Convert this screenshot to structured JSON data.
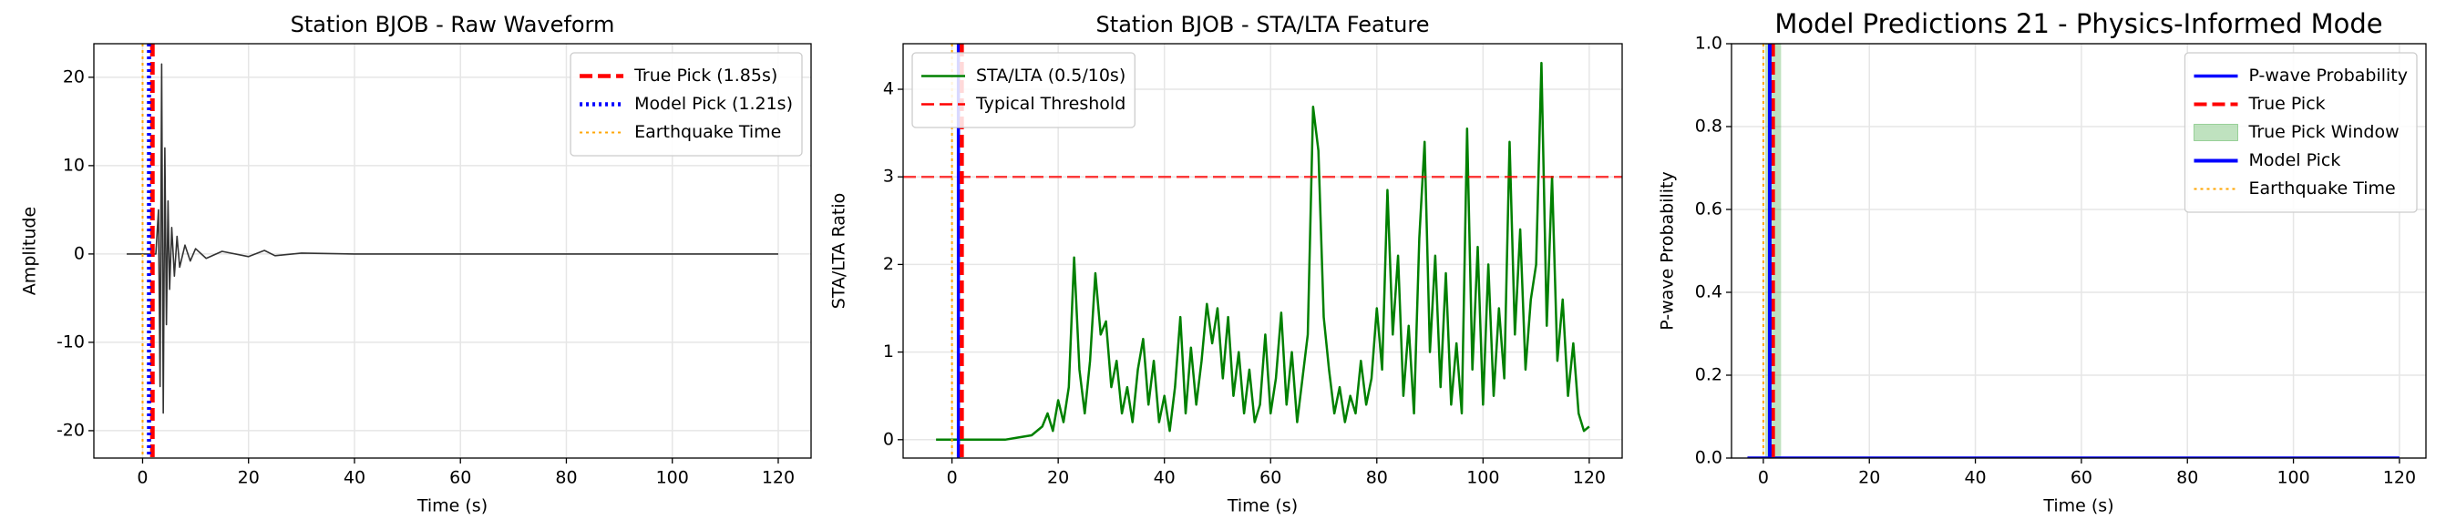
{
  "chart_data": [
    {
      "type": "line",
      "title": "Station BJOB - Raw Waveform",
      "xlabel": "Time (s)",
      "ylabel": "Amplitude",
      "xlim": [
        -9.2,
        126.2
      ],
      "ylim": [
        -23.1,
        23.8
      ],
      "xticks": [
        0,
        20,
        40,
        60,
        80,
        100,
        120
      ],
      "yticks": [
        -20,
        -10,
        0,
        10,
        20
      ],
      "grid": true,
      "legend": "upper right",
      "layers": [
        {
          "kind": "vline",
          "name": "True Pick (1.85s)",
          "color": "#ff0000",
          "style": "dashed",
          "linewidth": 5,
          "x": 1.85
        },
        {
          "kind": "vline",
          "name": "Model Pick (1.21s)",
          "color": "#0000ff",
          "style": "dotted",
          "linewidth": 4.5,
          "x": 1.21
        },
        {
          "kind": "vline",
          "name": "Earthquake Time",
          "color": "#ffa500",
          "style": "dotted",
          "linewidth": 2,
          "x": 0
        },
        {
          "kind": "line",
          "color": "#333333",
          "style": "solid",
          "linewidth": 1.6,
          "x": [
            -3,
            2.5,
            3,
            3.3,
            3.6,
            3.9,
            4.2,
            4.5,
            4.8,
            5.1,
            5.5,
            6,
            6.5,
            7,
            8,
            9,
            10,
            12,
            15,
            20,
            23,
            25,
            30,
            40,
            60,
            80,
            100,
            120
          ],
          "values": [
            0,
            0,
            5,
            -15,
            21.5,
            -18,
            12,
            -8,
            6,
            -4,
            3,
            -2.5,
            2,
            -1.5,
            1,
            -0.8,
            0.6,
            -0.5,
            0.3,
            -0.3,
            0.4,
            -0.2,
            0.1,
            0,
            0,
            0,
            0,
            0
          ]
        }
      ]
    },
    {
      "type": "line",
      "title": "Station BJOB - STA/LTA Feature",
      "xlabel": "Time (s)",
      "ylabel": "STA/LTA Ratio",
      "xlim": [
        -9.2,
        126.2
      ],
      "ylim": [
        -0.21,
        4.52
      ],
      "xticks": [
        0,
        20,
        40,
        60,
        80,
        100,
        120
      ],
      "yticks": [
        0,
        1,
        2,
        3,
        4
      ],
      "grid": true,
      "legend": "upper left",
      "layers": [
        {
          "kind": "line",
          "name": "STA/LTA (0.5/10s)",
          "color": "#008000",
          "style": "solid",
          "linewidth": 2.5,
          "x": [
            -3,
            10,
            12,
            15,
            17,
            18,
            19,
            20,
            21,
            22,
            23,
            24,
            25,
            26,
            27,
            28,
            29,
            30,
            31,
            32,
            33,
            34,
            35,
            36,
            37,
            38,
            39,
            40,
            41,
            42,
            43,
            44,
            45,
            46,
            47,
            48,
            49,
            50,
            51,
            52,
            53,
            54,
            55,
            56,
            57,
            58,
            59,
            60,
            61,
            62,
            63,
            64,
            65,
            66,
            67,
            68,
            69,
            70,
            71,
            72,
            73,
            74,
            75,
            76,
            77,
            78,
            79,
            80,
            81,
            82,
            83,
            84,
            85,
            86,
            87,
            88,
            89,
            90,
            91,
            92,
            93,
            94,
            95,
            96,
            97,
            98,
            99,
            100,
            101,
            102,
            103,
            104,
            105,
            106,
            107,
            108,
            109,
            110,
            111,
            112,
            113,
            114,
            115,
            116,
            117,
            118,
            119,
            120
          ],
          "values": [
            0,
            0,
            0.02,
            0.05,
            0.15,
            0.3,
            0.1,
            0.45,
            0.2,
            0.6,
            2.08,
            0.8,
            0.3,
            0.9,
            1.9,
            1.2,
            1.35,
            0.6,
            0.9,
            0.3,
            0.6,
            0.2,
            0.8,
            1.15,
            0.4,
            0.9,
            0.2,
            0.5,
            0.1,
            0.6,
            1.4,
            0.3,
            1.05,
            0.4,
            0.9,
            1.55,
            1.1,
            1.5,
            0.7,
            1.4,
            0.5,
            1.0,
            0.3,
            0.8,
            0.2,
            0.4,
            1.2,
            0.3,
            0.7,
            1.45,
            0.4,
            1.0,
            0.2,
            0.7,
            1.2,
            3.8,
            3.3,
            1.4,
            0.8,
            0.3,
            0.6,
            0.2,
            0.5,
            0.3,
            0.9,
            0.4,
            0.7,
            1.5,
            0.8,
            2.85,
            1.2,
            2.1,
            0.5,
            1.3,
            0.3,
            2.3,
            3.4,
            1.0,
            2.1,
            0.6,
            1.9,
            0.4,
            1.1,
            0.3,
            3.55,
            0.8,
            2.2,
            0.4,
            2.0,
            0.5,
            1.5,
            0.7,
            3.4,
            1.2,
            2.4,
            0.8,
            1.6,
            2.0,
            4.3,
            1.3,
            3.0,
            0.9,
            1.6,
            0.5,
            1.1,
            0.3,
            0.1,
            0.15
          ]
        },
        {
          "kind": "hline",
          "name": "Typical Threshold",
          "color": "#ff0000",
          "style": "dashed",
          "linewidth": 2.5,
          "y": 3
        },
        {
          "kind": "vline",
          "color": "#0000ff",
          "style": "solid",
          "linewidth": 3.5,
          "x": 1.21
        },
        {
          "kind": "vline",
          "color": "#ff0000",
          "style": "dashed",
          "linewidth": 4.5,
          "x": 1.85
        },
        {
          "kind": "vline",
          "color": "#ffa500",
          "style": "dotted",
          "linewidth": 2,
          "x": 0
        }
      ]
    },
    {
      "type": "line",
      "title": "Model Predictions 21 - Physics-Informed Mode",
      "xlabel": "Time (s)",
      "ylabel": "P-wave Probability",
      "xlim": [
        -6,
        125
      ],
      "ylim": [
        0,
        1
      ],
      "xticks": [
        0,
        20,
        40,
        60,
        80,
        100,
        120
      ],
      "yticks": [
        {
          "value": 0,
          "label": "0.0"
        },
        {
          "value": 0.2,
          "label": "0.2"
        },
        {
          "value": 0.4,
          "label": "0.4"
        },
        {
          "value": 0.6,
          "label": "0.6"
        },
        {
          "value": 0.8,
          "label": "0.8"
        },
        {
          "value": 1,
          "label": "1.0"
        }
      ],
      "grid": true,
      "legend": "upper right",
      "layers": [
        {
          "kind": "line",
          "name": "P-wave Probability",
          "color": "#0000ff",
          "style": "solid",
          "linewidth": 3.5,
          "x": [
            -3,
            120
          ],
          "values": [
            0,
            0
          ]
        },
        {
          "kind": "vline",
          "name": "True Pick",
          "color": "#ff0000",
          "style": "dashed",
          "linewidth": 4,
          "x": 1.85
        },
        {
          "kind": "span",
          "name": "True Pick Window",
          "color": "#2ca02c",
          "x": [
            0.35,
            3.35
          ]
        },
        {
          "kind": "vline",
          "name": "Model Pick",
          "color": "#0000ff",
          "style": "solid",
          "linewidth": 4,
          "x": 1.21
        },
        {
          "kind": "vline",
          "name": "Earthquake Time",
          "color": "#ffa500",
          "style": "dotted",
          "linewidth": 2,
          "x": 0
        }
      ]
    }
  ]
}
